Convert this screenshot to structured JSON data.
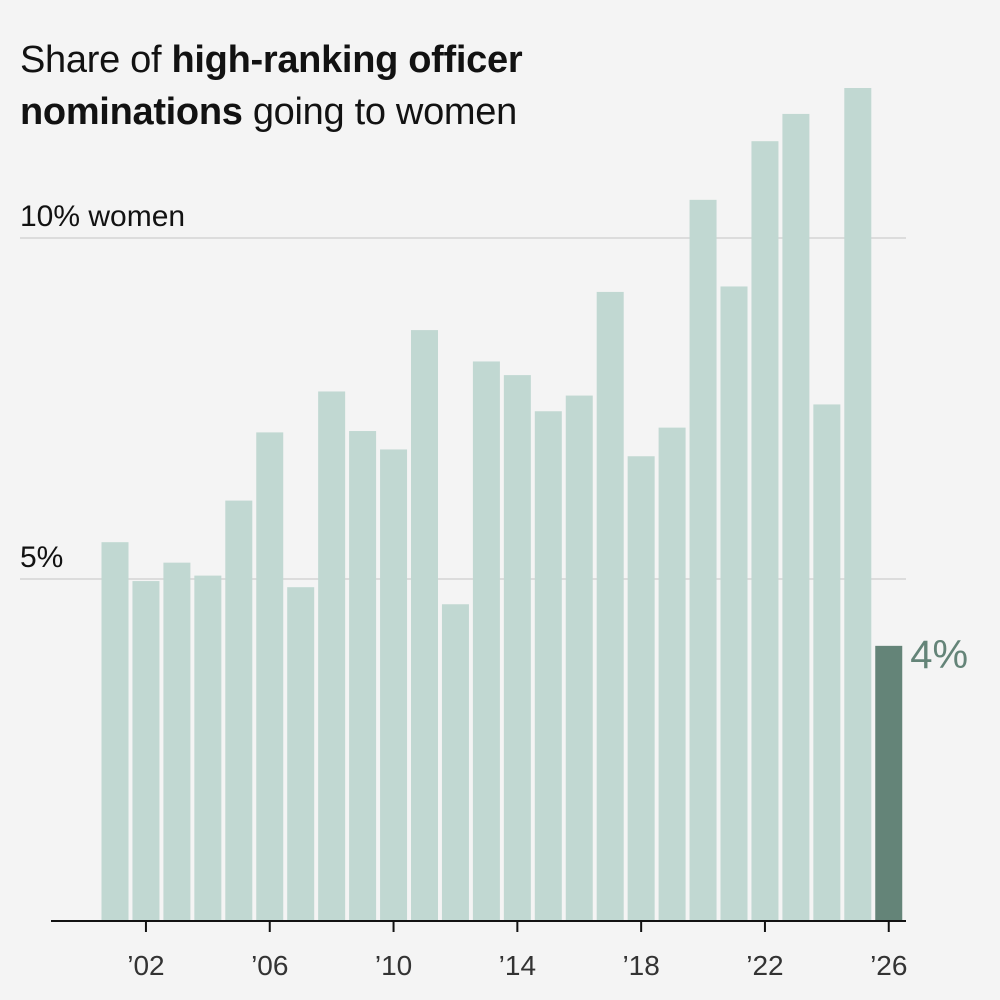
{
  "title": {
    "part1": "Share of ",
    "bold1": "high-ranking officer nominations",
    "part2": " going to women"
  },
  "colors": {
    "bar": "#c1d8d2",
    "highlight": "#648478",
    "grid": "#dcdcdc",
    "axis": "#121212"
  },
  "chart_data": {
    "type": "bar",
    "categories": [
      "2001",
      "2002",
      "2003",
      "2004",
      "2005",
      "2006",
      "2007",
      "2008",
      "2009",
      "2010",
      "2011",
      "2012",
      "2013",
      "2014",
      "2015",
      "2016",
      "2017",
      "2018",
      "2019",
      "2020",
      "2021",
      "2022",
      "2023",
      "2024",
      "2025",
      "2026"
    ],
    "values": [
      5.54,
      4.97,
      5.24,
      5.05,
      6.15,
      7.15,
      4.88,
      7.75,
      7.17,
      6.9,
      8.65,
      4.63,
      8.19,
      7.99,
      7.46,
      7.69,
      9.21,
      6.8,
      7.22,
      10.56,
      9.29,
      11.42,
      11.82,
      7.56,
      12.2,
      4.02
    ],
    "highlight_index": 25,
    "ylim": [
      0,
      12.7
    ],
    "gridlines": [
      {
        "value": 5,
        "label": "5%"
      },
      {
        "value": 10,
        "label": "10% women"
      }
    ],
    "ticks": [
      {
        "category": "2002",
        "label": "’02"
      },
      {
        "category": "2006",
        "label": "’06"
      },
      {
        "category": "2010",
        "label": "’10"
      },
      {
        "category": "2014",
        "label": "’14"
      },
      {
        "category": "2018",
        "label": "’18"
      },
      {
        "category": "2022",
        "label": "’22"
      },
      {
        "category": "2026",
        "label": "’26"
      }
    ],
    "end_label": "4%",
    "xlabel": "",
    "ylabel": "",
    "legend": "none",
    "grid": true
  }
}
